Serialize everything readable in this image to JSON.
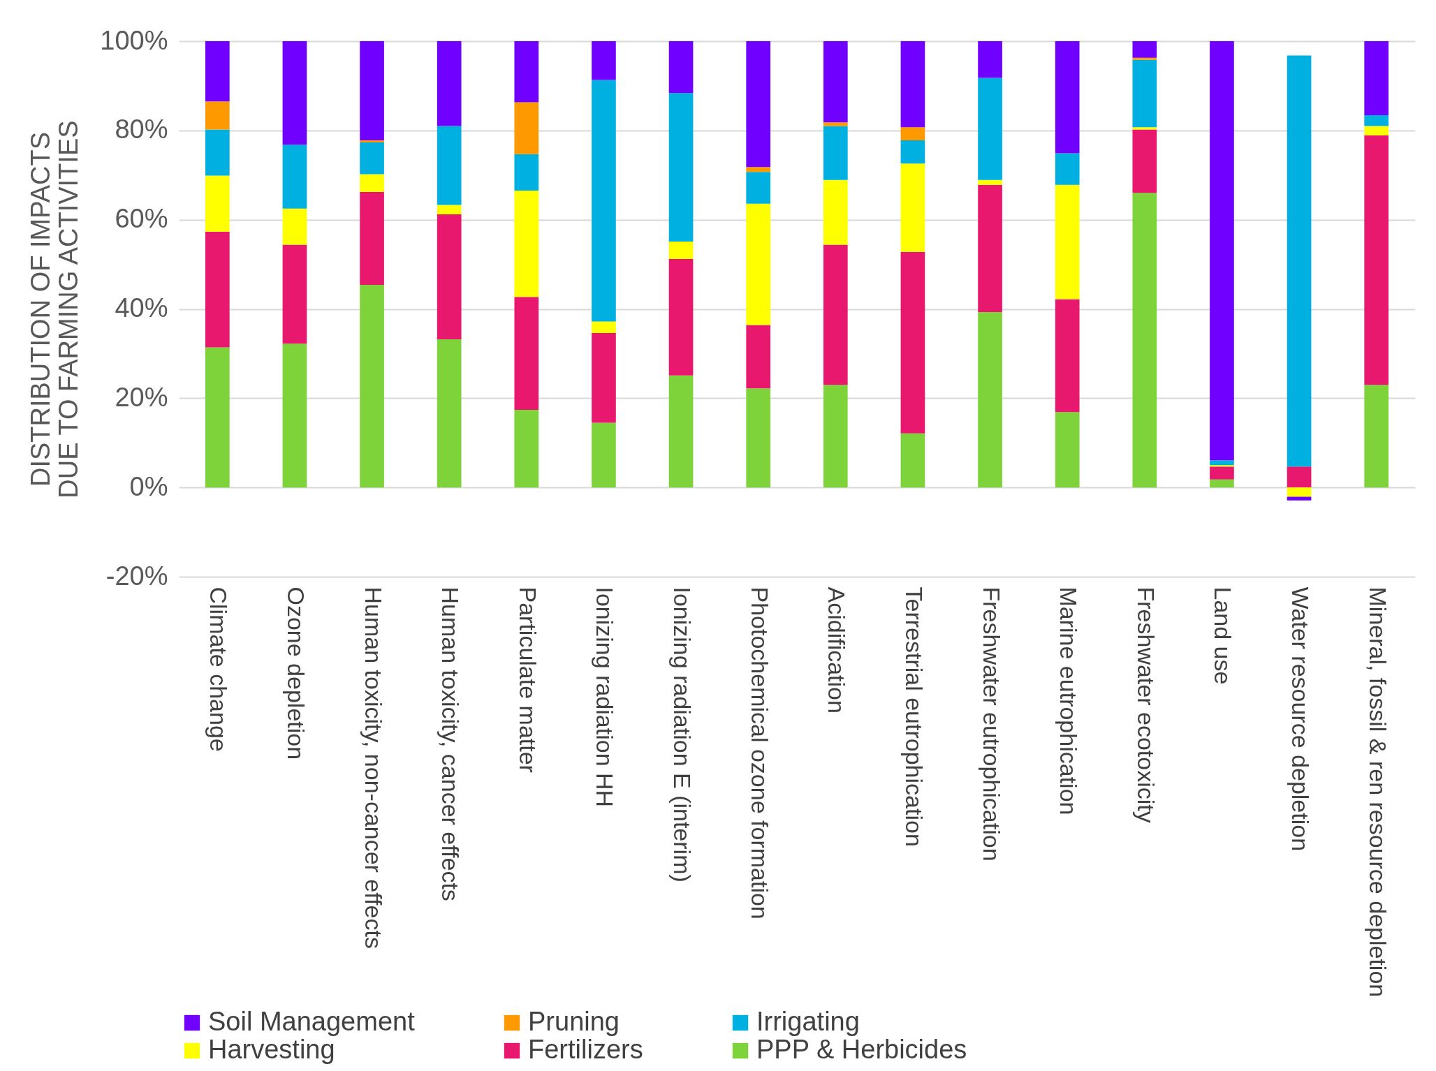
{
  "chart_data": {
    "type": "bar",
    "stacked": true,
    "ylabel": "DISTRIBUTION OF IMPACTS\nDUE TO FARMING ACTIVITIES",
    "categories": [
      "Climate change",
      "Ozone depletion",
      "Human toxicity, non-cancer effects",
      "Human toxicity, cancer effects",
      "Particulate matter",
      "Ionizing radiation HH",
      "Ionizing radiation E (interim)",
      "Photochemical ozone formation",
      "Acidification",
      "Terrestrial eutrophication",
      "Freshwater eutrophication",
      "Marine eutrophication",
      "Freshwater ecotoxicity",
      "Land use",
      "Water resource depletion",
      "Mineral, fossil & ren resource depletion"
    ],
    "series": [
      {
        "name": "PPP & Herbicides",
        "color": "#7ed33a",
        "values": [
          31.4,
          32.2,
          45.4,
          33.2,
          17.4,
          14.5,
          25.1,
          22.2,
          23.0,
          12.1,
          39.3,
          16.9,
          66.0,
          1.8,
          0,
          23.0
        ]
      },
      {
        "name": "Fertilizers",
        "color": "#e8186f",
        "values": [
          25.9,
          22.2,
          20.8,
          28.0,
          25.3,
          20.1,
          26.1,
          14.2,
          31.4,
          40.7,
          28.5,
          25.3,
          14.2,
          2.9,
          4.7,
          55.9
        ]
      },
      {
        "name": "Harvesting",
        "color": "#ffff00",
        "values": [
          12.6,
          8.1,
          4.0,
          2.1,
          23.8,
          2.6,
          3.9,
          27.2,
          14.5,
          19.8,
          1.1,
          25.6,
          0.5,
          0.3,
          -2.1,
          2.1
        ]
      },
      {
        "name": "Irrigating",
        "color": "#00b0e0",
        "values": [
          10.3,
          14.3,
          7.1,
          17.7,
          8.2,
          54.1,
          33.3,
          7.1,
          12.1,
          5.2,
          22.9,
          7.1,
          15.1,
          1.1,
          92.1,
          2.4
        ]
      },
      {
        "name": "Pruning",
        "color": "#ff9900",
        "values": [
          6.3,
          0,
          0.5,
          0,
          11.6,
          0,
          0,
          1.1,
          0.8,
          2.9,
          0,
          0,
          0.5,
          0,
          0,
          0
        ]
      },
      {
        "name": "Soil Management",
        "color": "#7000ff",
        "values": [
          13.5,
          23.2,
          22.2,
          19.0,
          13.7,
          8.7,
          11.6,
          28.2,
          18.2,
          19.3,
          8.2,
          25.1,
          3.7,
          93.9,
          -0.8,
          16.6
        ]
      }
    ],
    "ylim": [
      -20,
      100
    ],
    "yticks": [
      {
        "value": -20,
        "label": "-20%"
      },
      {
        "value": 0,
        "label": "0%"
      },
      {
        "value": 20,
        "label": "20%"
      },
      {
        "value": 40,
        "label": "40%"
      },
      {
        "value": 60,
        "label": "60%"
      },
      {
        "value": 80,
        "label": "80%"
      },
      {
        "value": 100,
        "label": "100%"
      }
    ],
    "grid": "y",
    "legend": "bottom"
  }
}
